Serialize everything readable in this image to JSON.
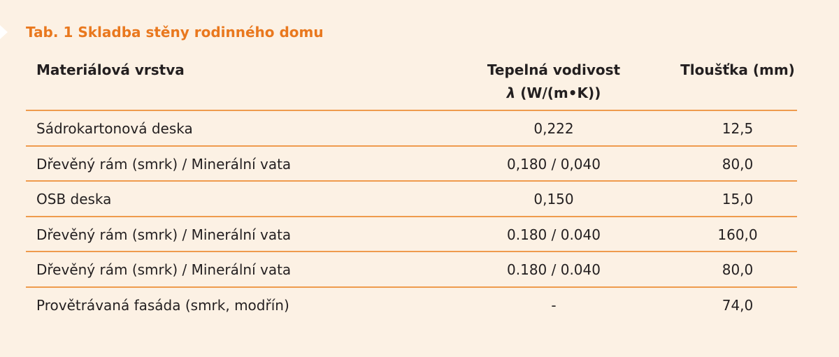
{
  "title": "Tab. 1 Skladba stěny rodinného domu",
  "table": {
    "header": [
      {
        "lines": [
          "Materiálová vrstva"
        ]
      },
      {
        "lines": [
          "Tepelná vodivost"
        ],
        "symbol": "λ",
        "unit": "(W/(m•K))"
      },
      {
        "lines": [
          "Tloušťka (mm)"
        ]
      }
    ],
    "rows": [
      [
        "Sádrokartonová deska",
        "0,222",
        "12,5"
      ],
      [
        "Dřevěný rám (smrk) / Minerální vata",
        "0,180 / 0,040",
        "80,0"
      ],
      [
        "OSB deska",
        "0,150",
        "15,0"
      ],
      [
        "Dřevěný rám (smrk) / Minerální vata",
        "0.180 / 0.040",
        "160,0"
      ],
      [
        "Dřevěný rám (smrk) / Minerální vata",
        "0.180 / 0.040",
        "80,0"
      ],
      [
        "Provětrávaná fasáda (smrk, modřín)",
        "-",
        "74,0"
      ]
    ]
  }
}
